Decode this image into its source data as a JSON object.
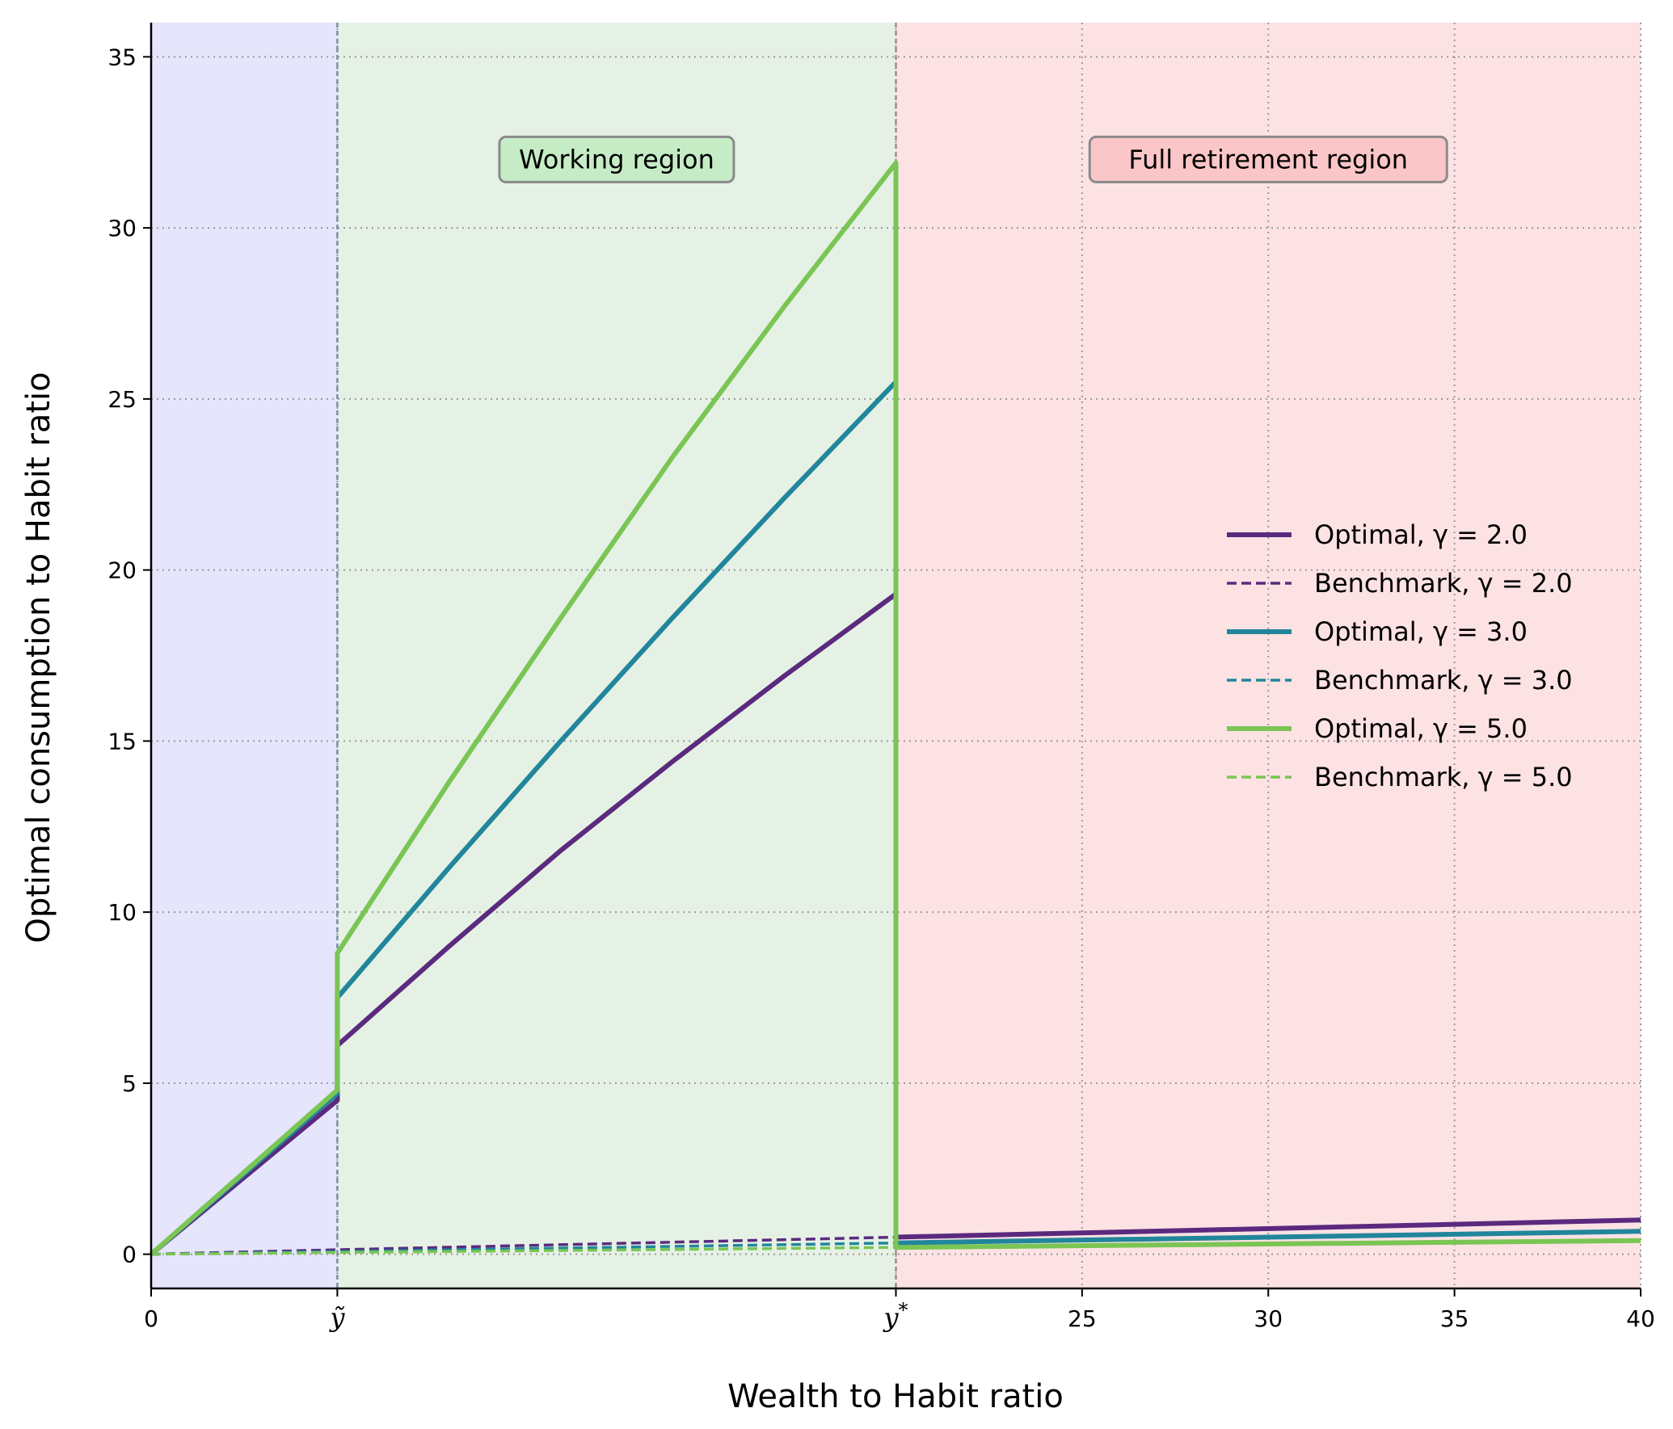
{
  "chart_data": {
    "type": "line",
    "xlabel": "Wealth to Habit ratio",
    "ylabel": "Optimal consumption to Habit ratio",
    "xlim": [
      0,
      40
    ],
    "ylim": [
      -1,
      36
    ],
    "x_ticks": [
      {
        "value": 0,
        "label": "0"
      },
      {
        "value": 5,
        "label": "ỹ"
      },
      {
        "value": 20,
        "label": "y*"
      },
      {
        "value": 25,
        "label": "25"
      },
      {
        "value": 30,
        "label": "30"
      },
      {
        "value": 35,
        "label": "35"
      },
      {
        "value": 40,
        "label": "40"
      }
    ],
    "y_ticks": [
      0,
      5,
      10,
      15,
      20,
      25,
      30,
      35
    ],
    "grid": true,
    "thresholds": {
      "y_tilde": 5,
      "y_star": 20
    },
    "regions": [
      {
        "from": 0,
        "to": 5,
        "color": "#e5e5fc",
        "label": ""
      },
      {
        "from": 5,
        "to": 20,
        "color": "#e5f1e5",
        "label": "Working region",
        "box_color": "#c6ecc6"
      },
      {
        "from": 20,
        "to": 40,
        "color": "#fde2e4",
        "label": "Full retirement region",
        "box_color": "#fbc6c8"
      }
    ],
    "legend_position": "center-right",
    "series": [
      {
        "name": "Optimal, γ = 2.0",
        "color": "#5b2a7e",
        "dash": "solid",
        "x": [
          0,
          5,
          5,
          8,
          11,
          14,
          17,
          20,
          20,
          40
        ],
        "y": [
          0,
          4.5,
          6.1,
          9.0,
          11.8,
          14.4,
          16.9,
          19.3,
          0.5,
          1.0
        ]
      },
      {
        "name": "Benchmark, γ = 2.0",
        "color": "#5b2a7e",
        "dash": "dashed",
        "x": [
          0,
          5,
          20,
          40
        ],
        "y": [
          0,
          0.13,
          0.5,
          1.0
        ]
      },
      {
        "name": "Optimal, γ = 3.0",
        "color": "#21869b",
        "dash": "solid",
        "x": [
          0,
          5,
          5,
          8,
          11,
          14,
          17,
          20,
          20,
          40
        ],
        "y": [
          0,
          4.7,
          7.5,
          11.3,
          15.0,
          18.6,
          22.1,
          25.5,
          0.33,
          0.67
        ]
      },
      {
        "name": "Benchmark, γ = 3.0",
        "color": "#21869b",
        "dash": "dashed",
        "x": [
          0,
          5,
          20,
          40
        ],
        "y": [
          0,
          0.08,
          0.33,
          0.67
        ]
      },
      {
        "name": "Optimal, γ = 5.0",
        "color": "#7ac554",
        "dash": "solid",
        "x": [
          0,
          5,
          5,
          8,
          11,
          14,
          17,
          20,
          20,
          40
        ],
        "y": [
          0,
          4.8,
          8.8,
          13.8,
          18.6,
          23.3,
          27.7,
          31.9,
          0.2,
          0.4
        ]
      },
      {
        "name": "Benchmark, γ = 5.0",
        "color": "#7ac554",
        "dash": "dashed",
        "x": [
          0,
          5,
          20,
          40
        ],
        "y": [
          0,
          0.05,
          0.2,
          0.4
        ]
      }
    ]
  }
}
